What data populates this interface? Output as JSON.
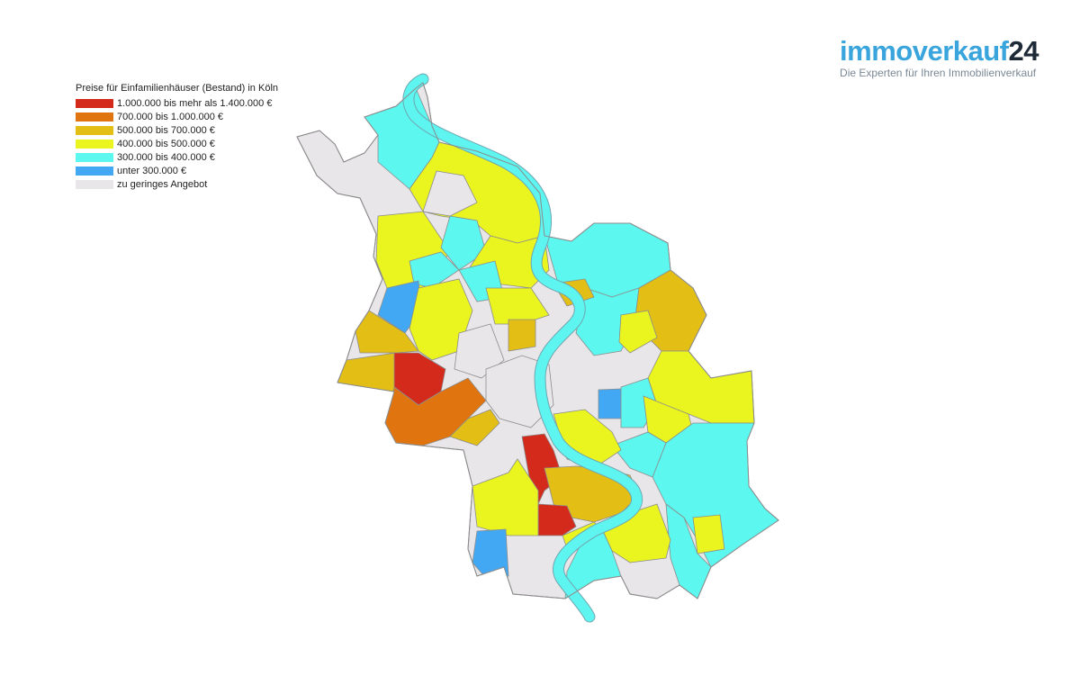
{
  "logo": {
    "brand_text": "immoverkauf",
    "brand_number": "24",
    "tagline": "Die Experten für Ihren Immobilienverkauf"
  },
  "legend": {
    "title": "Preise für Einfamilienhäuser (Bestand) in Köln",
    "items": [
      {
        "label": "1.000.000 bis mehr als 1.400.000 €",
        "color": "#d42a1c"
      },
      {
        "label": "700.000 bis 1.000.000 €",
        "color": "#e0740e"
      },
      {
        "label": "500.000 bis 700.000 €",
        "color": "#e3bf16"
      },
      {
        "label": "400.000 bis 500.000 €",
        "color": "#eaf51f"
      },
      {
        "label": "300.000 bis 400.000 €",
        "color": "#5cf7ef"
      },
      {
        "label": "unter 300.000 €",
        "color": "#42a8f3"
      },
      {
        "label": "zu geringes Angebot",
        "color": "#e8e6e8"
      }
    ]
  },
  "colors": {
    "river": "#5ef5f0",
    "river_outline": "#6fa6b0",
    "border": "#8c8c8c"
  }
}
